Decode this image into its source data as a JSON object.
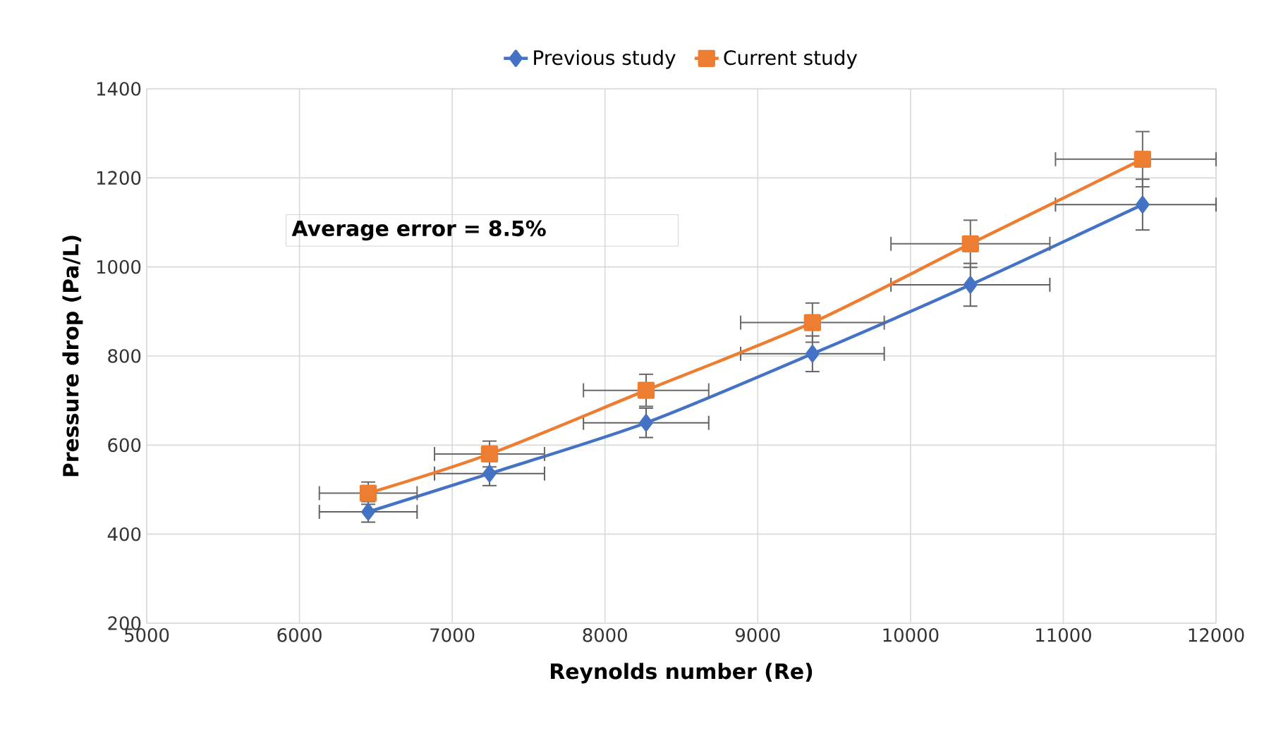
{
  "chart_data": {
    "type": "line",
    "xlabel": "Reynolds number (Re)",
    "ylabel": "Pressure drop (Pa/L)",
    "xlim": [
      5000,
      12000
    ],
    "xticks": [
      5000,
      6000,
      7000,
      8000,
      9000,
      10000,
      11000,
      12000
    ],
    "ylim": [
      200,
      1400
    ],
    "yticks": [
      200,
      400,
      600,
      800,
      1000,
      1200,
      1400
    ],
    "grid": true,
    "legend": "top",
    "line_style": "solid",
    "annotations": [
      "Average error = 8.5%"
    ],
    "series": [
      {
        "name": "Previous study",
        "color": "#4472c4",
        "marker": "diamond",
        "x": [
          6450,
          7244,
          8269,
          9358,
          10392,
          11519
        ],
        "values": [
          450,
          536,
          650,
          805,
          960,
          1140
        ],
        "errors": [
          23,
          27,
          33,
          40,
          48,
          57
        ],
        "xerrors": [
          320,
          360,
          410,
          470,
          520,
          [
            10949,
            12000
          ]
        ]
      },
      {
        "name": "Current study",
        "color": "#ed7d31",
        "marker": "square",
        "x": [
          6450,
          7244,
          8269,
          9358,
          10392,
          11519
        ],
        "values": [
          492,
          580,
          723,
          875,
          1052,
          1242
        ],
        "errors": [
          25,
          29,
          36,
          44,
          53,
          62
        ],
        "xerrors": [
          320,
          360,
          410,
          470,
          520,
          [
            10949,
            12000
          ]
        ]
      }
    ]
  }
}
